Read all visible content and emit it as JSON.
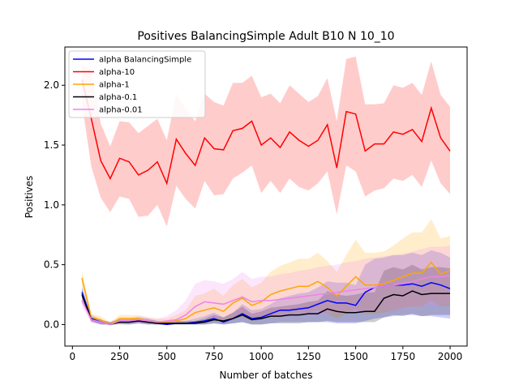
{
  "chart_data": {
    "type": "line",
    "title": "Positives BalancingSimple Adult B10 N 10_10",
    "xlabel": "Number of batches",
    "ylabel": "Positives",
    "xlim": [
      -40,
      2090
    ],
    "ylim": [
      -0.18,
      2.32
    ],
    "xticks": [
      0,
      250,
      500,
      750,
      1000,
      1250,
      1500,
      1750,
      2000
    ],
    "yticks": [
      0.0,
      0.5,
      1.0,
      1.5,
      2.0
    ],
    "xtick_labels": [
      "0",
      "250",
      "500",
      "750",
      "1000",
      "1250",
      "1500",
      "1750",
      "2000"
    ],
    "ytick_labels": [
      "0.0",
      "0.5",
      "1.0",
      "1.5",
      "2.0"
    ],
    "legend_position": "upper left",
    "grid": false,
    "x": [
      50,
      100,
      150,
      200,
      250,
      300,
      350,
      400,
      450,
      500,
      550,
      600,
      650,
      700,
      750,
      800,
      850,
      900,
      950,
      1000,
      1050,
      1100,
      1150,
      1200,
      1250,
      1300,
      1350,
      1400,
      1450,
      1500,
      1550,
      1600,
      1650,
      1700,
      1750,
      1800,
      1850,
      1900,
      1950,
      2000
    ],
    "series": [
      {
        "name": "alpha BalancingSimple",
        "color": "#0000ff",
        "values": [
          0.27,
          0.05,
          0.02,
          0.0,
          0.02,
          0.02,
          0.03,
          0.02,
          0.01,
          0.0,
          0.01,
          0.01,
          0.02,
          0.03,
          0.05,
          0.02,
          0.05,
          0.09,
          0.05,
          0.06,
          0.09,
          0.12,
          0.12,
          0.13,
          0.14,
          0.17,
          0.2,
          0.18,
          0.18,
          0.16,
          0.27,
          0.31,
          0.32,
          0.33,
          0.33,
          0.34,
          0.32,
          0.35,
          0.33,
          0.3
        ],
        "lower": [
          0.22,
          0.03,
          0.0,
          0.0,
          0.01,
          0.0,
          0.01,
          0.0,
          0.0,
          0.0,
          0.0,
          0.0,
          0.0,
          0.0,
          0.01,
          0.0,
          0.01,
          0.02,
          0.0,
          0.0,
          0.01,
          0.02,
          0.02,
          0.02,
          0.02,
          0.02,
          0.02,
          0.01,
          0.01,
          0.01,
          0.03,
          0.05,
          0.06,
          0.07,
          0.08,
          0.08,
          0.07,
          0.07,
          0.06,
          0.05
        ],
        "upper": [
          0.32,
          0.08,
          0.04,
          0.02,
          0.05,
          0.05,
          0.06,
          0.05,
          0.03,
          0.02,
          0.03,
          0.03,
          0.05,
          0.07,
          0.1,
          0.06,
          0.1,
          0.17,
          0.12,
          0.13,
          0.17,
          0.22,
          0.24,
          0.26,
          0.27,
          0.31,
          0.36,
          0.35,
          0.35,
          0.33,
          0.5,
          0.55,
          0.56,
          0.58,
          0.58,
          0.6,
          0.58,
          0.62,
          0.6,
          0.56
        ]
      },
      {
        "name": "alpha-10",
        "color": "#ff0000",
        "values": [
          2.05,
          1.72,
          1.37,
          1.22,
          1.39,
          1.36,
          1.25,
          1.29,
          1.36,
          1.18,
          1.55,
          1.43,
          1.33,
          1.56,
          1.47,
          1.46,
          1.62,
          1.64,
          1.7,
          1.5,
          1.56,
          1.48,
          1.61,
          1.54,
          1.49,
          1.54,
          1.67,
          1.31,
          1.78,
          1.76,
          1.45,
          1.51,
          1.51,
          1.61,
          1.59,
          1.63,
          1.53,
          1.81,
          1.56,
          1.45
        ],
        "lower": [
          1.85,
          1.32,
          1.06,
          0.94,
          1.07,
          1.05,
          0.9,
          0.91,
          1.0,
          0.82,
          1.16,
          1.05,
          0.97,
          1.2,
          1.08,
          1.09,
          1.22,
          1.27,
          1.33,
          1.1,
          1.2,
          1.1,
          1.22,
          1.15,
          1.12,
          1.18,
          1.28,
          0.92,
          1.33,
          1.28,
          1.07,
          1.12,
          1.14,
          1.22,
          1.2,
          1.25,
          1.15,
          1.37,
          1.18,
          1.09
        ],
        "upper": [
          2.18,
          2.12,
          1.68,
          1.49,
          1.7,
          1.69,
          1.6,
          1.66,
          1.72,
          1.54,
          1.93,
          1.8,
          1.7,
          1.93,
          1.86,
          1.83,
          2.02,
          2.02,
          2.08,
          1.9,
          1.93,
          1.85,
          2.0,
          1.93,
          1.86,
          1.91,
          2.06,
          1.7,
          2.22,
          2.24,
          1.84,
          1.84,
          1.85,
          2.0,
          1.98,
          2.02,
          1.92,
          2.2,
          1.92,
          1.82
        ]
      },
      {
        "name": "alpha-1",
        "color": "#ffa500",
        "values": [
          0.39,
          0.06,
          0.04,
          0.0,
          0.05,
          0.05,
          0.05,
          0.03,
          0.02,
          0.02,
          0.03,
          0.05,
          0.1,
          0.12,
          0.14,
          0.11,
          0.18,
          0.22,
          0.16,
          0.19,
          0.25,
          0.28,
          0.3,
          0.32,
          0.32,
          0.36,
          0.31,
          0.24,
          0.32,
          0.4,
          0.33,
          0.33,
          0.34,
          0.37,
          0.4,
          0.43,
          0.43,
          0.52,
          0.42,
          0.45
        ],
        "lower": [
          0.33,
          0.04,
          0.02,
          0.0,
          0.02,
          0.02,
          0.02,
          0.01,
          0.0,
          0.0,
          0.0,
          0.01,
          0.02,
          0.03,
          0.04,
          0.02,
          0.05,
          0.06,
          0.03,
          0.04,
          0.07,
          0.08,
          0.09,
          0.1,
          0.1,
          0.12,
          0.09,
          0.05,
          0.09,
          0.13,
          0.09,
          0.09,
          0.1,
          0.12,
          0.14,
          0.15,
          0.15,
          0.2,
          0.15,
          0.16
        ],
        "upper": [
          0.45,
          0.09,
          0.07,
          0.02,
          0.08,
          0.08,
          0.08,
          0.06,
          0.05,
          0.05,
          0.08,
          0.12,
          0.24,
          0.26,
          0.3,
          0.24,
          0.33,
          0.38,
          0.31,
          0.35,
          0.44,
          0.49,
          0.52,
          0.55,
          0.55,
          0.6,
          0.53,
          0.44,
          0.58,
          0.71,
          0.6,
          0.6,
          0.61,
          0.66,
          0.72,
          0.77,
          0.77,
          0.88,
          0.72,
          0.74
        ]
      },
      {
        "name": "alpha-0.1",
        "color": "#000000",
        "values": [
          0.25,
          0.04,
          0.02,
          0.0,
          0.02,
          0.02,
          0.03,
          0.02,
          0.01,
          0.01,
          0.01,
          0.01,
          0.01,
          0.02,
          0.04,
          0.03,
          0.05,
          0.08,
          0.04,
          0.05,
          0.07,
          0.07,
          0.08,
          0.08,
          0.09,
          0.09,
          0.13,
          0.11,
          0.1,
          0.1,
          0.11,
          0.11,
          0.22,
          0.25,
          0.24,
          0.28,
          0.25,
          0.26,
          0.26,
          0.26
        ],
        "lower": [
          0.2,
          0.02,
          0.0,
          0.0,
          0.0,
          0.0,
          0.01,
          0.0,
          0.0,
          0.0,
          0.0,
          0.0,
          0.0,
          0.0,
          0.01,
          0.0,
          0.01,
          0.02,
          0.0,
          0.0,
          0.01,
          0.01,
          0.01,
          0.01,
          0.02,
          0.02,
          0.03,
          0.02,
          0.02,
          0.02,
          0.02,
          0.02,
          0.06,
          0.08,
          0.07,
          0.09,
          0.07,
          0.08,
          0.08,
          0.08
        ],
        "upper": [
          0.3,
          0.06,
          0.04,
          0.02,
          0.04,
          0.04,
          0.05,
          0.04,
          0.03,
          0.03,
          0.03,
          0.03,
          0.03,
          0.05,
          0.08,
          0.06,
          0.1,
          0.15,
          0.09,
          0.11,
          0.14,
          0.15,
          0.16,
          0.17,
          0.19,
          0.2,
          0.28,
          0.25,
          0.24,
          0.25,
          0.27,
          0.27,
          0.45,
          0.48,
          0.46,
          0.5,
          0.46,
          0.48,
          0.48,
          0.47
        ]
      },
      {
        "name": "alpha-0.01",
        "color": "#ee82ee",
        "values": [
          0.2,
          0.04,
          0.02,
          0.0,
          0.03,
          0.03,
          0.04,
          0.03,
          0.02,
          0.03,
          0.04,
          0.08,
          0.15,
          0.19,
          0.18,
          0.17,
          0.2,
          0.23,
          0.19,
          0.2,
          0.2,
          0.21,
          0.22,
          0.23,
          0.24,
          0.25,
          0.26,
          0.27,
          0.28,
          0.29,
          0.3,
          0.31,
          0.32,
          0.33,
          0.34,
          0.36,
          0.38,
          0.4,
          0.4,
          0.41
        ],
        "lower": [
          0.15,
          0.02,
          0.0,
          0.0,
          0.01,
          0.01,
          0.01,
          0.01,
          0.0,
          0.01,
          0.01,
          0.02,
          0.04,
          0.06,
          0.05,
          0.05,
          0.06,
          0.07,
          0.05,
          0.06,
          0.06,
          0.06,
          0.07,
          0.07,
          0.08,
          0.08,
          0.09,
          0.09,
          0.1,
          0.1,
          0.11,
          0.11,
          0.12,
          0.12,
          0.13,
          0.14,
          0.15,
          0.16,
          0.16,
          0.17
        ],
        "upper": [
          0.25,
          0.06,
          0.04,
          0.02,
          0.06,
          0.06,
          0.07,
          0.06,
          0.05,
          0.07,
          0.12,
          0.2,
          0.34,
          0.37,
          0.36,
          0.34,
          0.38,
          0.44,
          0.38,
          0.4,
          0.4,
          0.42,
          0.43,
          0.45,
          0.46,
          0.48,
          0.49,
          0.5,
          0.52,
          0.53,
          0.55,
          0.56,
          0.57,
          0.58,
          0.59,
          0.61,
          0.63,
          0.65,
          0.65,
          0.66
        ]
      }
    ]
  }
}
